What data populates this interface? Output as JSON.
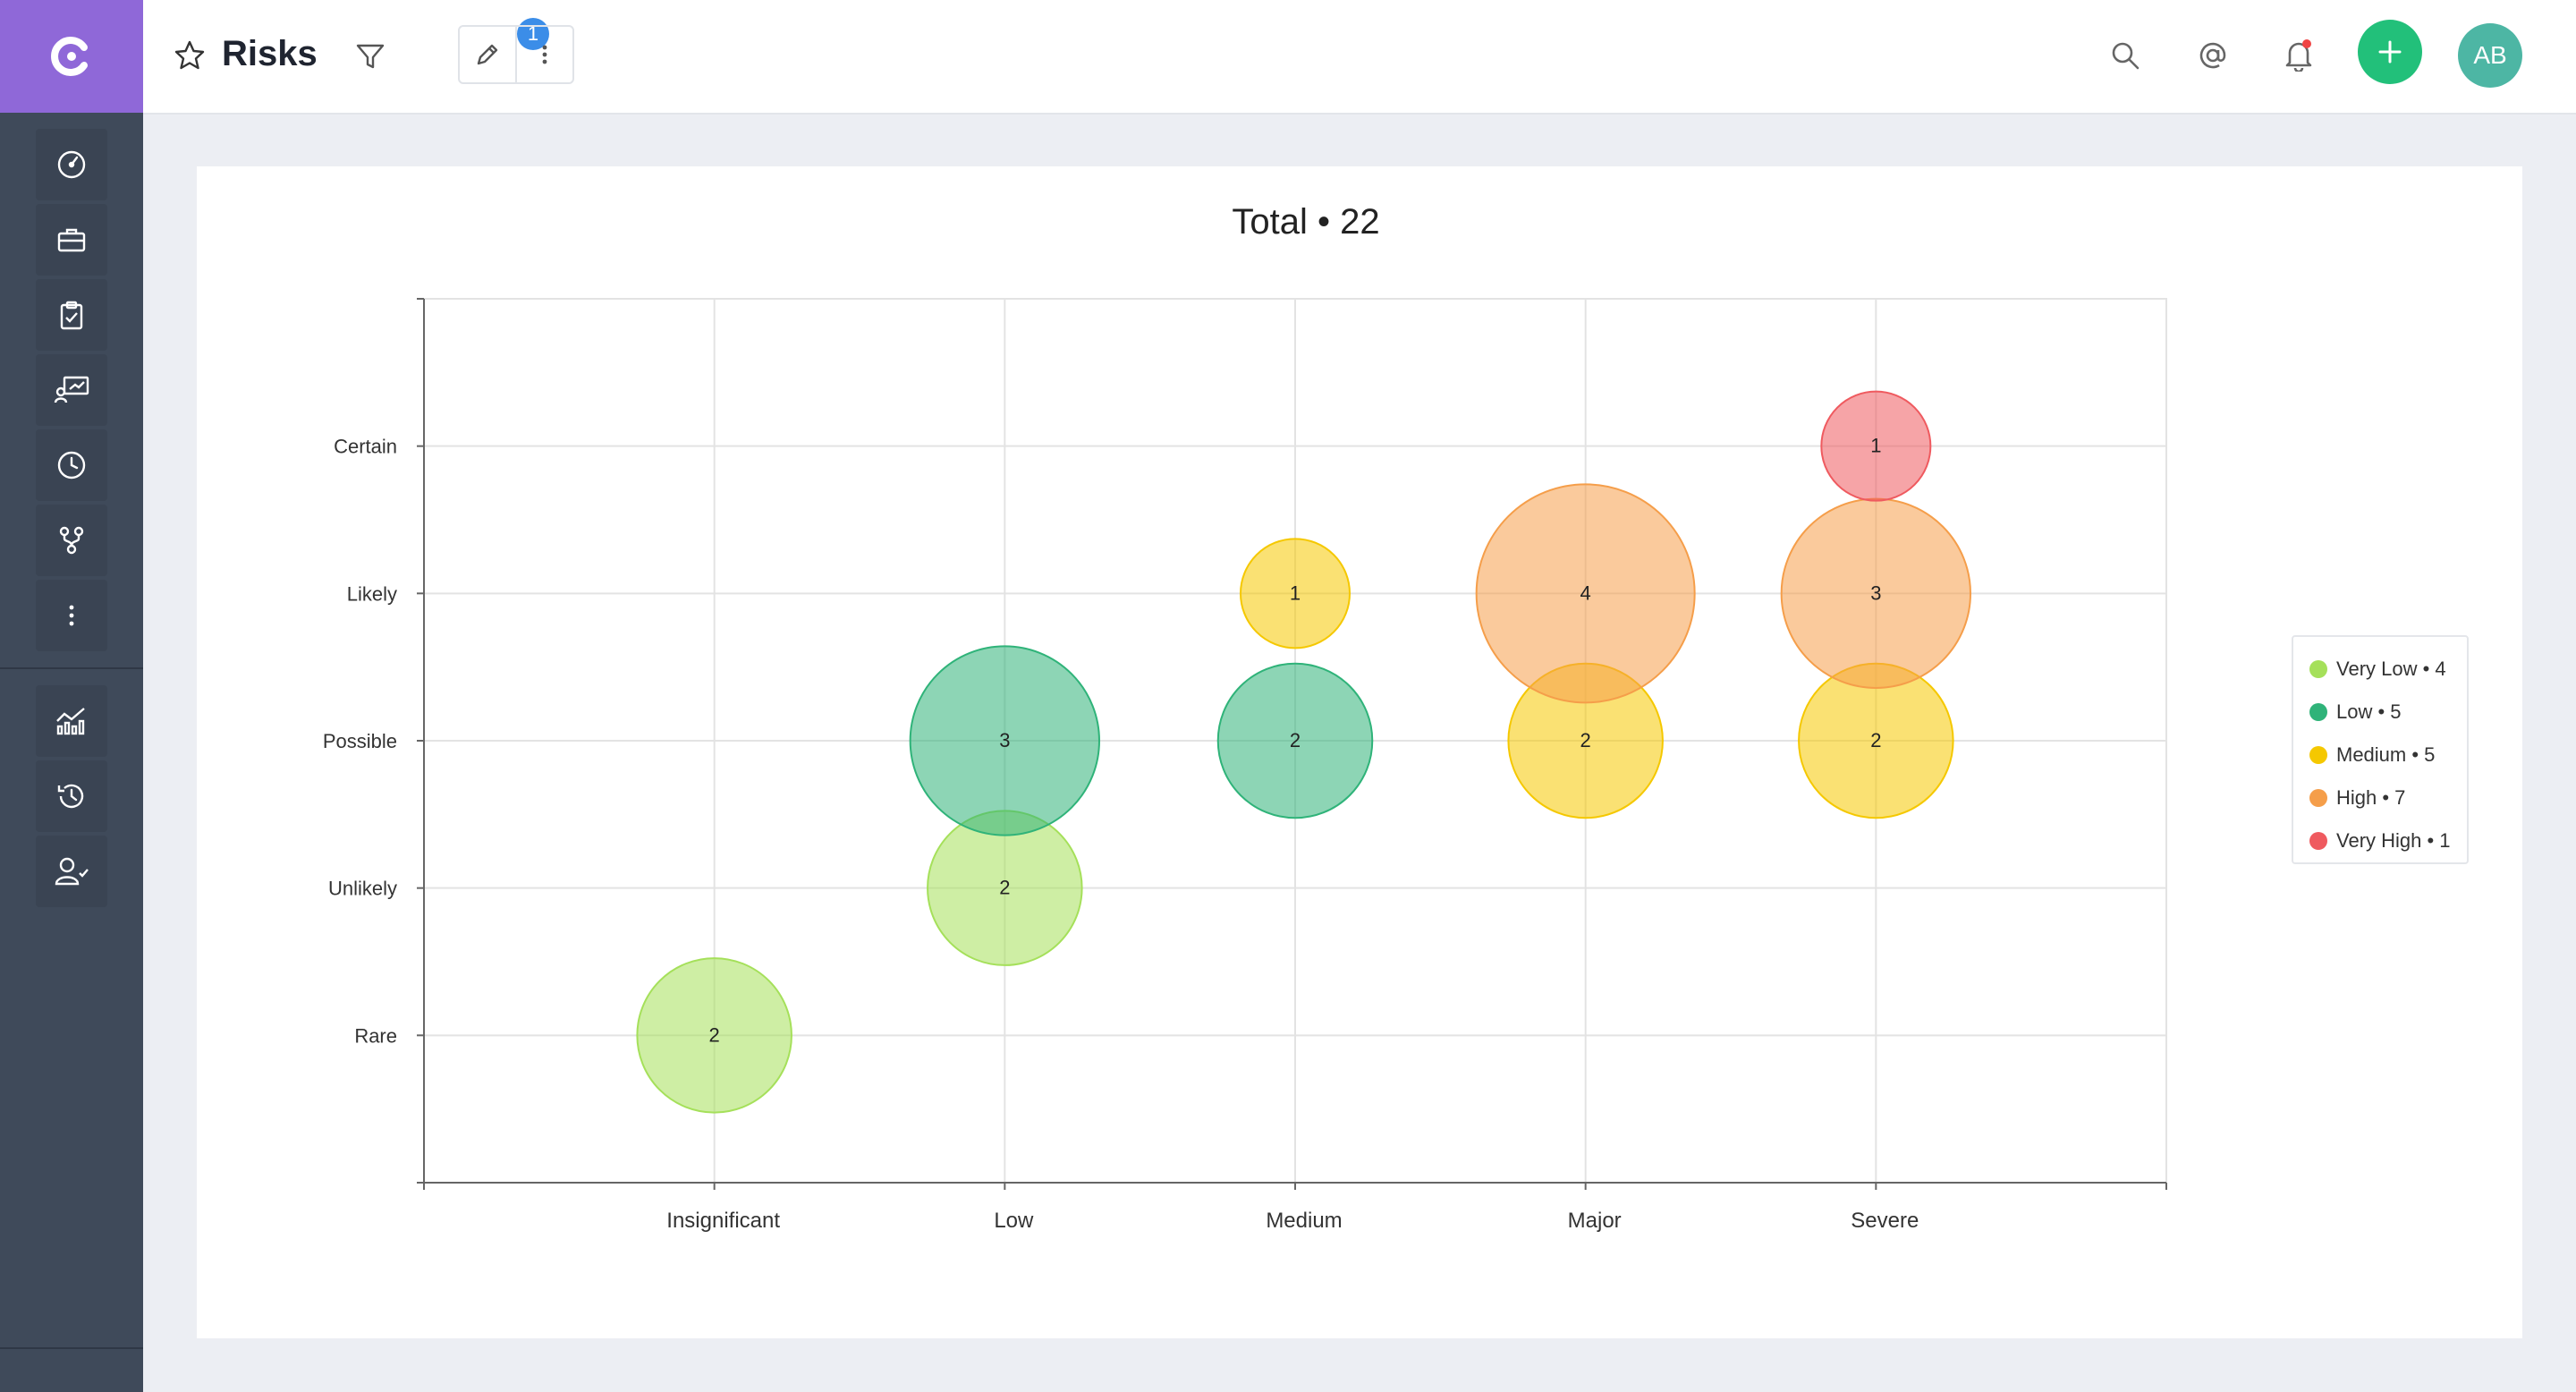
{
  "header": {
    "title": "Risks",
    "filter_count": "1",
    "avatar_initials": "AB"
  },
  "sidebar": {
    "items": [
      {
        "icon": "dashboard-icon"
      },
      {
        "icon": "briefcase-icon"
      },
      {
        "icon": "clipboard-icon"
      },
      {
        "icon": "presentation-icon"
      },
      {
        "icon": "clock-icon"
      },
      {
        "icon": "workflow-icon"
      },
      {
        "icon": "more-vertical-icon"
      },
      {
        "icon": "analytics-icon"
      },
      {
        "icon": "history-icon"
      },
      {
        "icon": "user-check-icon"
      }
    ]
  },
  "colors": {
    "brand": "#8f68d8",
    "sidebar": "#3f4a5a",
    "add_button": "#22c07a",
    "avatar": "#4db6a4",
    "badge": "#3b8de8"
  },
  "chart_data": {
    "type": "scatter",
    "title": "Total • 22",
    "x_categories": [
      "Insignificant",
      "Low",
      "Medium",
      "Major",
      "Severe"
    ],
    "y_categories": [
      "Rare",
      "Unlikely",
      "Possible",
      "Likely",
      "Certain"
    ],
    "grid": true,
    "legend_position": "right",
    "series": [
      {
        "name": "Very Low",
        "total": 4,
        "label": "Very Low • 4",
        "color": "#a5e05a",
        "points": [
          {
            "x": "Insignificant",
            "y": "Rare",
            "value": 2
          },
          {
            "x": "Low",
            "y": "Unlikely",
            "value": 2
          }
        ]
      },
      {
        "name": "Low",
        "total": 5,
        "label": "Low • 5",
        "color": "#2fb379",
        "points": [
          {
            "x": "Low",
            "y": "Possible",
            "value": 3
          },
          {
            "x": "Medium",
            "y": "Possible",
            "value": 2
          }
        ]
      },
      {
        "name": "Medium",
        "total": 5,
        "label": "Medium • 5",
        "color": "#f5c800",
        "points": [
          {
            "x": "Medium",
            "y": "Likely",
            "value": 1
          },
          {
            "x": "Major",
            "y": "Possible",
            "value": 2
          },
          {
            "x": "Severe",
            "y": "Possible",
            "value": 2
          }
        ]
      },
      {
        "name": "High",
        "total": 7,
        "label": "High • 7",
        "color": "#f59e4a",
        "points": [
          {
            "x": "Major",
            "y": "Likely",
            "value": 4
          },
          {
            "x": "Severe",
            "y": "Likely",
            "value": 3
          }
        ]
      },
      {
        "name": "Very High",
        "total": 1,
        "label": "Very High • 1",
        "color": "#ef5a5f",
        "points": [
          {
            "x": "Severe",
            "y": "Certain",
            "value": 1
          }
        ]
      }
    ]
  }
}
